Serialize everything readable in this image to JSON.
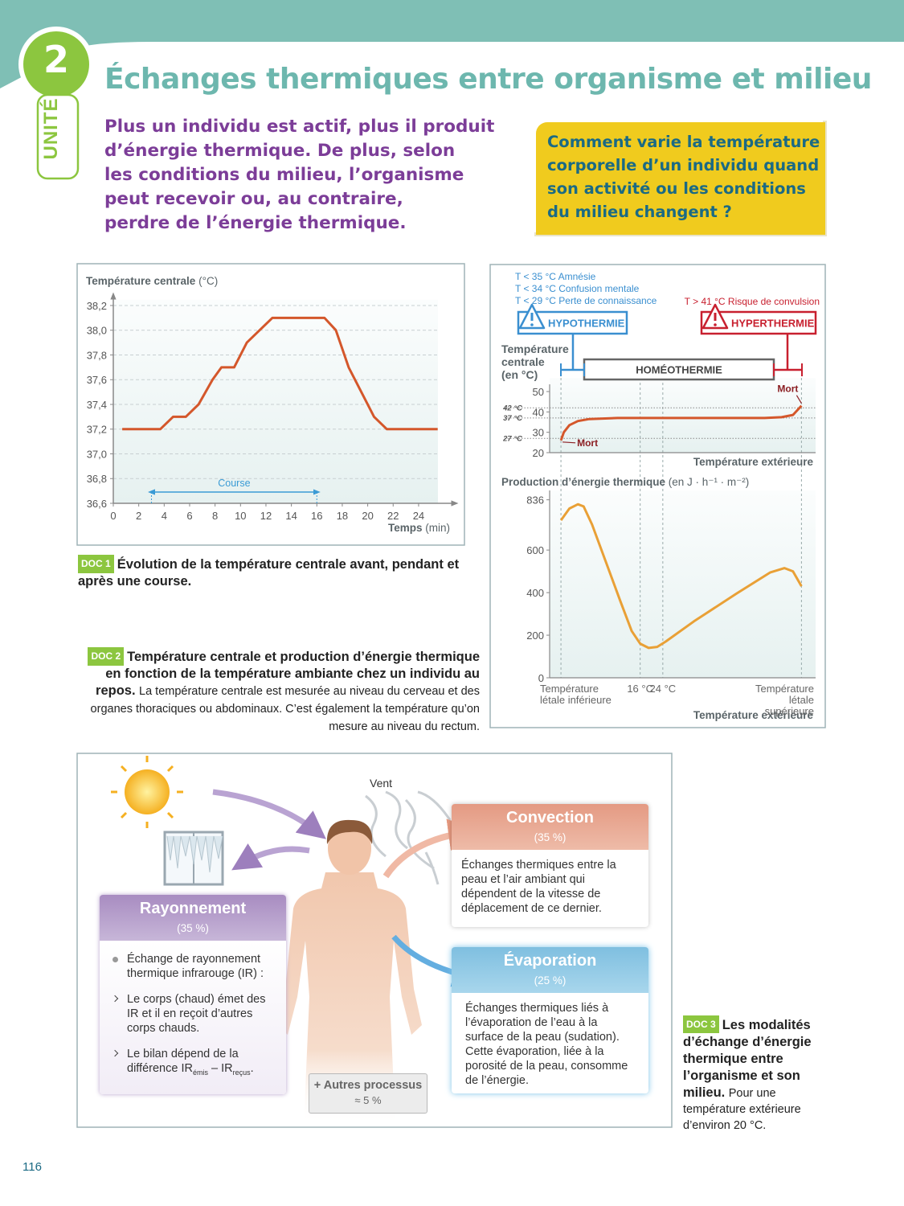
{
  "header": {
    "unit_number": "2",
    "unit_label": "UNITÉ",
    "title": "Échanges thermiques entre organisme et milieu",
    "intro_lines": [
      "Plus un individu est actif, plus il produit",
      "d’énergie thermique. De plus, selon",
      "les conditions du milieu, l’organisme",
      "peut recevoir ou, au contraire,",
      "perdre de l’énergie thermique."
    ],
    "question_lines": [
      "Comment varie la température",
      "corporelle d’un individu quand",
      "son activité ou les conditions",
      "du milieu changent ?"
    ]
  },
  "chart_data": [
    {
      "type": "line",
      "y_label": "Température centrale",
      "y_unit": "(°C)",
      "x_label": "Temps",
      "x_unit": "(min)",
      "x": [
        0.7,
        3.7,
        4.7,
        5.7,
        6.7,
        7.8,
        8.5,
        9.5,
        10.5,
        12.5,
        16.6,
        17.5,
        18.5,
        20.5,
        21.5,
        25.5
      ],
      "values": [
        37.2,
        37.2,
        37.3,
        37.3,
        37.4,
        37.6,
        37.7,
        37.7,
        37.9,
        38.1,
        38.1,
        38.0,
        37.7,
        37.3,
        37.2,
        37.2
      ],
      "color": "#d4572b",
      "xlim": [
        0,
        26.5
      ],
      "ylim": [
        36.6,
        38.3
      ],
      "xticks": [
        0,
        2,
        4,
        6,
        8,
        10,
        12,
        14,
        16,
        18,
        20,
        22,
        24
      ],
      "yticks": [
        {
          "value": 36.6,
          "label": "36,6"
        },
        {
          "value": 36.8,
          "label": "36,8"
        },
        {
          "value": 37.0,
          "label": "37,0"
        },
        {
          "value": 37.2,
          "label": "37,2"
        },
        {
          "value": 37.4,
          "label": "37,4"
        },
        {
          "value": 37.6,
          "label": "37,6"
        },
        {
          "value": 37.8,
          "label": "37,8"
        },
        {
          "value": 38.0,
          "label": "38,0"
        },
        {
          "value": 38.2,
          "label": "38,2"
        }
      ],
      "grid": true,
      "annotations": [
        {
          "text": "Course",
          "span": [
            3,
            16
          ]
        }
      ]
    },
    {
      "type": "line",
      "y_label_lines": [
        "Température",
        "centrale",
        "(en °C)"
      ],
      "x_label": "Température extérieure",
      "x": [
        -12,
        -11,
        -9,
        -6,
        -2,
        8,
        60,
        66,
        70,
        73
      ],
      "values": [
        26,
        30,
        33.5,
        35.5,
        36.5,
        37,
        37,
        37.4,
        38.5,
        43
      ],
      "color": "#d4572b",
      "xlim": [
        -16,
        78
      ],
      "ylim": [
        20,
        50
      ],
      "yticks": [
        20,
        30,
        40,
        50
      ],
      "ref_lines": [
        {
          "value": 42,
          "label": "42 °C"
        },
        {
          "value": 37,
          "label": "37 °C"
        },
        {
          "value": 27,
          "label": "27 °C"
        }
      ],
      "annotations": [
        {
          "text": "Mort",
          "x": -12,
          "y": 26
        },
        {
          "text": "Mort",
          "x": 73,
          "y": 43
        }
      ],
      "states": [
        {
          "label": "HYPOTHERMIE",
          "color": "#3a8fd0",
          "notes": [
            "T < 35 °C Amnésie",
            "T < 34 °C Confusion mentale",
            "T < 29 °C Perte de connaissance"
          ]
        },
        {
          "label": "HOMÉOTHERMIE",
          "color": "#666666"
        },
        {
          "label": "HYPERTHERMIE",
          "color": "#c8202f",
          "notes": [
            "T > 41 °C Risque de convulsion"
          ]
        }
      ]
    },
    {
      "type": "line",
      "y_label": "Production d’énergie thermique",
      "y_unit": "(en J · h⁻¹ · m⁻²)",
      "x_label": "Température extérieure",
      "x": [
        -12,
        -9,
        -6,
        -4,
        -1,
        4,
        9,
        13,
        16,
        19,
        22,
        25,
        35,
        50,
        62,
        67,
        70,
        73
      ],
      "values": [
        740,
        795,
        815,
        805,
        720,
        540,
        360,
        220,
        160,
        140,
        145,
        170,
        265,
        395,
        495,
        515,
        500,
        430
      ],
      "color": "#e9a036",
      "xlim": [
        -16,
        78
      ],
      "ylim": [
        0,
        880
      ],
      "xticks": [
        {
          "value": -12,
          "label": "Température létale inférieure"
        },
        {
          "value": 16,
          "label": "16 °C"
        },
        {
          "value": 24,
          "label": "24 °C"
        },
        {
          "value": 73,
          "label": "Température létale supérieure"
        }
      ],
      "yticks": [
        0,
        200,
        400,
        600,
        836
      ]
    }
  ],
  "doc1_caption": {
    "tag": "DOC 1",
    "title": "Évolution de la température centrale avant, pendant et après une course."
  },
  "doc2_caption": {
    "tag": "DOC 2",
    "title": "Température centrale et production d’énergie thermique en fonction de la température ambiante chez un individu au repos.",
    "text": "La température centrale est mesurée au niveau du cerveau et des organes thoraciques ou abdominaux. C’est également la température qu’on mesure au niveau du rectum."
  },
  "doc3": {
    "wind": "Vent",
    "convection": {
      "title": "Convection",
      "percent": "(35 %)",
      "text": "Échanges thermiques entre la peau et l’air ambiant qui dépendent de la vitesse de déplacement de ce dernier."
    },
    "rayonnement": {
      "title": "Rayonnement",
      "percent": "(35 %)",
      "item1": "Échange de rayonnement thermique infrarouge (IR) :",
      "item2": "Le corps (chaud) émet des IR et il en reçoit d’autres corps chauds.",
      "item3": {
        "before": "Le bilan dépend de la différence IR",
        "sub1": "émis",
        "between": " – IR",
        "sub2": "reçus",
        "after": "."
      }
    },
    "evaporation": {
      "title": "Évaporation",
      "percent": "(25 %)",
      "text": "Échanges thermiques liés à l’évaporation de l’eau à la surface de la peau (sudation). Cette évaporation, liée à la porosité de la peau, consomme de l’énergie."
    },
    "other": {
      "title": "+ Autres processus",
      "percent": "≈ 5 %"
    },
    "caption": {
      "tag": "DOC 3",
      "title": "Les modalités d’échange d’énergie thermique entre l’organisme et son milieu.",
      "text": "Pour une température extérieure d’environ 20 °C."
    }
  },
  "page_number": "116"
}
